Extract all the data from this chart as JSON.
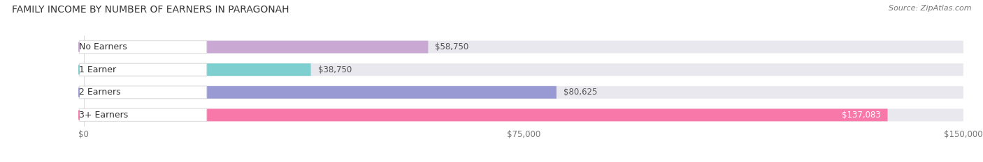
{
  "title": "FAMILY INCOME BY NUMBER OF EARNERS IN PARAGONAH",
  "source": "Source: ZipAtlas.com",
  "categories": [
    "No Earners",
    "1 Earner",
    "2 Earners",
    "3+ Earners"
  ],
  "values": [
    58750,
    38750,
    80625,
    137083
  ],
  "bar_colors": [
    "#c9a8d4",
    "#7ecfd0",
    "#9999d4",
    "#f878aa"
  ],
  "background_color": "#ffffff",
  "bar_bg_color": "#e8e8ee",
  "xlim": [
    0,
    150000
  ],
  "xticks": [
    0,
    75000,
    150000
  ],
  "xtick_labels": [
    "$0",
    "$75,000",
    "$150,000"
  ],
  "title_fontsize": 10,
  "source_fontsize": 8,
  "label_fontsize": 9,
  "value_fontsize": 8.5,
  "bar_height": 0.55
}
